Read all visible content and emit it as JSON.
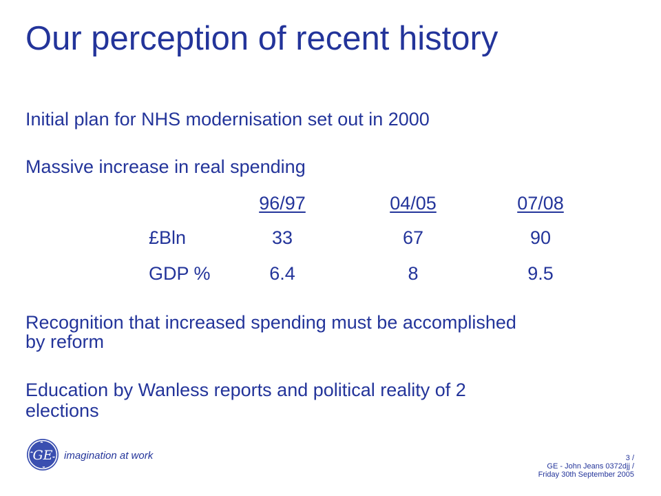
{
  "title": "Our perception of recent history",
  "bullets": {
    "plan": "Initial plan for NHS modernisation set out in 2000",
    "spending": "Massive increase in real spending",
    "recognition_line1": "Recognition that increased spending must be accomplished",
    "recognition_line2": "by reform",
    "education_line1": "Education by Wanless reports and political reality of 2",
    "education_line2": "elections"
  },
  "table": {
    "headers": [
      "96/97",
      "04/05",
      "07/08"
    ],
    "rows": [
      {
        "label": "£Bln",
        "values": [
          "33",
          "67",
          "90"
        ]
      },
      {
        "label": "GDP %",
        "values": [
          "6.4",
          "8",
          "9.5"
        ]
      }
    ]
  },
  "footer": {
    "tagline": "imagination at work",
    "line1": "3 /",
    "line2": "GE - John Jeans 0372djj /",
    "line3": "Friday 30th September 2005"
  },
  "colors": {
    "text": "#23349a",
    "background": "#ffffff"
  },
  "icons": {
    "logo": "ge-monogram-logo"
  }
}
